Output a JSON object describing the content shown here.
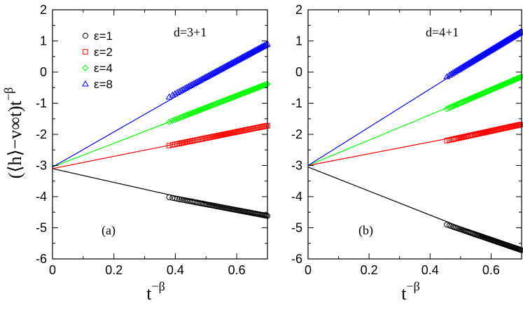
{
  "chart_data": [
    {
      "type": "line",
      "panel_label": "(a)",
      "annotation": "d=3+1",
      "xlabel": "t",
      "xlabel_sup": "−β",
      "ylabel": "(⟨h⟩−v∞t)t",
      "ylabel_sup": "−β",
      "xlim": [
        0,
        0.7
      ],
      "ylim": [
        -6,
        2
      ],
      "xticks": [
        0,
        0.2,
        0.4,
        0.6
      ],
      "xtick_labels": [
        "0",
        "0.2",
        "0.4",
        "0.6"
      ],
      "yticks": [
        -6,
        -5,
        -4,
        -3,
        -2,
        -1,
        0,
        1,
        2
      ],
      "ytick_labels": [
        "-6",
        "-5",
        "-4",
        "-3",
        "-2",
        "-1",
        "0",
        "1",
        "2"
      ],
      "series": [
        {
          "name": "ε=1",
          "color": "#000000",
          "marker": "circle",
          "fit": [
            [
              0,
              -3.1
            ],
            [
              0.7,
              -4.65
            ]
          ],
          "x_start": 0.38,
          "x_end": 0.7,
          "y_start": -4.02,
          "y_end": -4.62
        },
        {
          "name": "ε=2",
          "color": "#ff0000",
          "marker": "square",
          "fit": [
            [
              0,
              -3.1
            ],
            [
              0.7,
              -1.72
            ]
          ],
          "x_start": 0.38,
          "x_end": 0.7,
          "y_start": -2.36,
          "y_end": -1.72
        },
        {
          "name": "ε=4",
          "color": "#00ff00",
          "marker": "diamond",
          "fit": [
            [
              0,
              -3.05
            ],
            [
              0.7,
              -0.38
            ]
          ],
          "x_start": 0.38,
          "x_end": 0.7,
          "y_start": -1.6,
          "y_end": -0.38
        },
        {
          "name": "ε=8",
          "color": "#0000ff",
          "marker": "triangle",
          "fit": [
            [
              0,
              -3.05
            ],
            [
              0.7,
              0.9
            ]
          ],
          "x_start": 0.38,
          "x_end": 0.7,
          "y_start": -0.8,
          "y_end": 0.9
        }
      ]
    },
    {
      "type": "line",
      "panel_label": "(b)",
      "annotation": "d=4+1",
      "xlabel": "t",
      "xlabel_sup": "−β",
      "xlim": [
        0,
        0.7
      ],
      "ylim": [
        -6,
        2
      ],
      "xticks": [
        0,
        0.2,
        0.4,
        0.6
      ],
      "xtick_labels": [
        "0",
        "0.2",
        "0.4",
        "0.6"
      ],
      "yticks": [
        -6,
        -5,
        -4,
        -3,
        -2,
        -1,
        0,
        1,
        2
      ],
      "ytick_labels": [
        "-6",
        "-5",
        "-4",
        "-3",
        "-2",
        "-1",
        "0",
        "1",
        "2"
      ],
      "series": [
        {
          "name": "ε=1",
          "color": "#000000",
          "marker": "circle",
          "fit": [
            [
              0,
              -3.05
            ],
            [
              0.7,
              -5.75
            ]
          ],
          "x_start": 0.455,
          "x_end": 0.7,
          "y_start": -4.9,
          "y_end": -5.72
        },
        {
          "name": "ε=2",
          "color": "#ff0000",
          "marker": "square",
          "fit": [
            [
              0,
              -3.0
            ],
            [
              0.7,
              -1.68
            ]
          ],
          "x_start": 0.455,
          "x_end": 0.7,
          "y_start": -2.2,
          "y_end": -1.68
        },
        {
          "name": "ε=4",
          "color": "#00ff00",
          "marker": "diamond",
          "fit": [
            [
              0,
              -3.0
            ],
            [
              0.7,
              -0.15
            ]
          ],
          "x_start": 0.455,
          "x_end": 0.7,
          "y_start": -1.18,
          "y_end": -0.15
        },
        {
          "name": "ε=8",
          "color": "#0000ff",
          "marker": "triangle",
          "fit": [
            [
              0,
              -3.0
            ],
            [
              0.7,
              1.3
            ]
          ],
          "x_start": 0.455,
          "x_end": 0.7,
          "y_start": -0.15,
          "y_end": 1.3
        }
      ]
    }
  ],
  "legend": {
    "entries": [
      "ε=1",
      "ε=2",
      "ε=4",
      "ε=8"
    ],
    "placement": "top-left of panel (a)"
  }
}
